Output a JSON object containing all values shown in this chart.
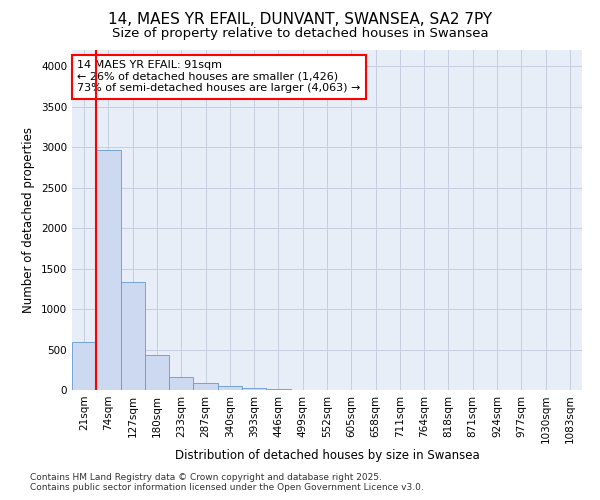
{
  "title": "14, MAES YR EFAIL, DUNVANT, SWANSEA, SA2 7PY",
  "subtitle": "Size of property relative to detached houses in Swansea",
  "xlabel": "Distribution of detached houses by size in Swansea",
  "ylabel": "Number of detached properties",
  "bar_color": "#ccd9f0",
  "bar_edge_color": "#6699cc",
  "background_color": "#e8eef8",
  "grid_color": "#c5cfe0",
  "annotation_text": "14 MAES YR EFAIL: 91sqm\n← 26% of detached houses are smaller (1,426)\n73% of semi-detached houses are larger (4,063) →",
  "redline_x": 0.5,
  "categories": [
    "21sqm",
    "74sqm",
    "127sqm",
    "180sqm",
    "233sqm",
    "287sqm",
    "340sqm",
    "393sqm",
    "446sqm",
    "499sqm",
    "552sqm",
    "605sqm",
    "658sqm",
    "711sqm",
    "764sqm",
    "818sqm",
    "871sqm",
    "924sqm",
    "977sqm",
    "1030sqm",
    "1083sqm"
  ],
  "values": [
    590,
    2970,
    1330,
    430,
    165,
    85,
    45,
    20,
    8,
    3,
    0,
    0,
    0,
    0,
    0,
    0,
    0,
    0,
    0,
    0,
    0
  ],
  "ylim": [
    0,
    4200
  ],
  "yticks": [
    0,
    500,
    1000,
    1500,
    2000,
    2500,
    3000,
    3500,
    4000
  ],
  "footer": "Contains HM Land Registry data © Crown copyright and database right 2025.\nContains public sector information licensed under the Open Government Licence v3.0.",
  "title_fontsize": 11,
  "subtitle_fontsize": 9.5,
  "axis_label_fontsize": 8.5,
  "tick_fontsize": 7.5,
  "annotation_fontsize": 8,
  "footer_fontsize": 6.5
}
